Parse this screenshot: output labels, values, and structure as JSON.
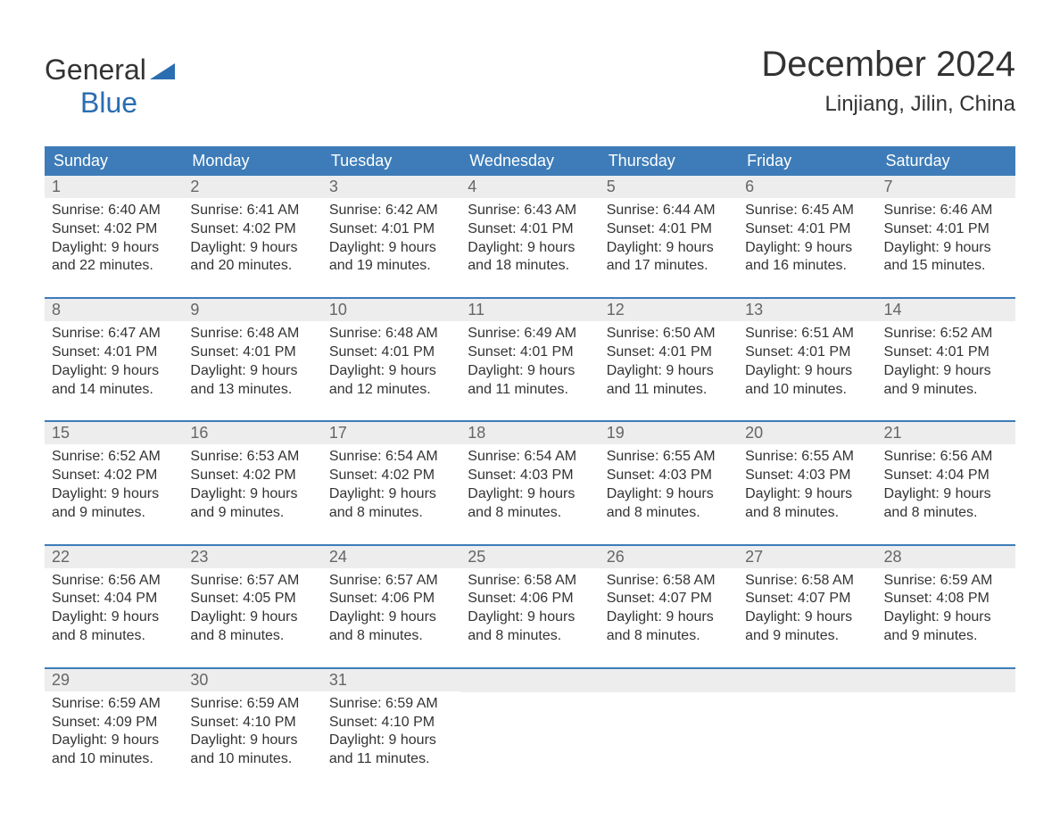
{
  "logo": {
    "word1": "General",
    "word2": "Blue",
    "triangle_color": "#2a6db0",
    "text_color_general": "#333333",
    "text_color_blue": "#2a6db0"
  },
  "title": "December 2024",
  "location": "Linjiang, Jilin, China",
  "colors": {
    "header_bg": "#3d7cb8",
    "header_text": "#ffffff",
    "daynum_bg": "#ededed",
    "daynum_text": "#666666",
    "body_text": "#333333",
    "week_border": "#3d7cb8",
    "page_bg": "#ffffff"
  },
  "fonts": {
    "title_size_pt": 30,
    "location_size_pt": 18,
    "header_size_pt": 14,
    "daynum_size_pt": 14,
    "body_size_pt": 12
  },
  "day_headers": [
    "Sunday",
    "Monday",
    "Tuesday",
    "Wednesday",
    "Thursday",
    "Friday",
    "Saturday"
  ],
  "weeks": [
    [
      {
        "num": "1",
        "sunrise": "Sunrise: 6:40 AM",
        "sunset": "Sunset: 4:02 PM",
        "daylight1": "Daylight: 9 hours",
        "daylight2": "and 22 minutes."
      },
      {
        "num": "2",
        "sunrise": "Sunrise: 6:41 AM",
        "sunset": "Sunset: 4:02 PM",
        "daylight1": "Daylight: 9 hours",
        "daylight2": "and 20 minutes."
      },
      {
        "num": "3",
        "sunrise": "Sunrise: 6:42 AM",
        "sunset": "Sunset: 4:01 PM",
        "daylight1": "Daylight: 9 hours",
        "daylight2": "and 19 minutes."
      },
      {
        "num": "4",
        "sunrise": "Sunrise: 6:43 AM",
        "sunset": "Sunset: 4:01 PM",
        "daylight1": "Daylight: 9 hours",
        "daylight2": "and 18 minutes."
      },
      {
        "num": "5",
        "sunrise": "Sunrise: 6:44 AM",
        "sunset": "Sunset: 4:01 PM",
        "daylight1": "Daylight: 9 hours",
        "daylight2": "and 17 minutes."
      },
      {
        "num": "6",
        "sunrise": "Sunrise: 6:45 AM",
        "sunset": "Sunset: 4:01 PM",
        "daylight1": "Daylight: 9 hours",
        "daylight2": "and 16 minutes."
      },
      {
        "num": "7",
        "sunrise": "Sunrise: 6:46 AM",
        "sunset": "Sunset: 4:01 PM",
        "daylight1": "Daylight: 9 hours",
        "daylight2": "and 15 minutes."
      }
    ],
    [
      {
        "num": "8",
        "sunrise": "Sunrise: 6:47 AM",
        "sunset": "Sunset: 4:01 PM",
        "daylight1": "Daylight: 9 hours",
        "daylight2": "and 14 minutes."
      },
      {
        "num": "9",
        "sunrise": "Sunrise: 6:48 AM",
        "sunset": "Sunset: 4:01 PM",
        "daylight1": "Daylight: 9 hours",
        "daylight2": "and 13 minutes."
      },
      {
        "num": "10",
        "sunrise": "Sunrise: 6:48 AM",
        "sunset": "Sunset: 4:01 PM",
        "daylight1": "Daylight: 9 hours",
        "daylight2": "and 12 minutes."
      },
      {
        "num": "11",
        "sunrise": "Sunrise: 6:49 AM",
        "sunset": "Sunset: 4:01 PM",
        "daylight1": "Daylight: 9 hours",
        "daylight2": "and 11 minutes."
      },
      {
        "num": "12",
        "sunrise": "Sunrise: 6:50 AM",
        "sunset": "Sunset: 4:01 PM",
        "daylight1": "Daylight: 9 hours",
        "daylight2": "and 11 minutes."
      },
      {
        "num": "13",
        "sunrise": "Sunrise: 6:51 AM",
        "sunset": "Sunset: 4:01 PM",
        "daylight1": "Daylight: 9 hours",
        "daylight2": "and 10 minutes."
      },
      {
        "num": "14",
        "sunrise": "Sunrise: 6:52 AM",
        "sunset": "Sunset: 4:01 PM",
        "daylight1": "Daylight: 9 hours",
        "daylight2": "and 9 minutes."
      }
    ],
    [
      {
        "num": "15",
        "sunrise": "Sunrise: 6:52 AM",
        "sunset": "Sunset: 4:02 PM",
        "daylight1": "Daylight: 9 hours",
        "daylight2": "and 9 minutes."
      },
      {
        "num": "16",
        "sunrise": "Sunrise: 6:53 AM",
        "sunset": "Sunset: 4:02 PM",
        "daylight1": "Daylight: 9 hours",
        "daylight2": "and 9 minutes."
      },
      {
        "num": "17",
        "sunrise": "Sunrise: 6:54 AM",
        "sunset": "Sunset: 4:02 PM",
        "daylight1": "Daylight: 9 hours",
        "daylight2": "and 8 minutes."
      },
      {
        "num": "18",
        "sunrise": "Sunrise: 6:54 AM",
        "sunset": "Sunset: 4:03 PM",
        "daylight1": "Daylight: 9 hours",
        "daylight2": "and 8 minutes."
      },
      {
        "num": "19",
        "sunrise": "Sunrise: 6:55 AM",
        "sunset": "Sunset: 4:03 PM",
        "daylight1": "Daylight: 9 hours",
        "daylight2": "and 8 minutes."
      },
      {
        "num": "20",
        "sunrise": "Sunrise: 6:55 AM",
        "sunset": "Sunset: 4:03 PM",
        "daylight1": "Daylight: 9 hours",
        "daylight2": "and 8 minutes."
      },
      {
        "num": "21",
        "sunrise": "Sunrise: 6:56 AM",
        "sunset": "Sunset: 4:04 PM",
        "daylight1": "Daylight: 9 hours",
        "daylight2": "and 8 minutes."
      }
    ],
    [
      {
        "num": "22",
        "sunrise": "Sunrise: 6:56 AM",
        "sunset": "Sunset: 4:04 PM",
        "daylight1": "Daylight: 9 hours",
        "daylight2": "and 8 minutes."
      },
      {
        "num": "23",
        "sunrise": "Sunrise: 6:57 AM",
        "sunset": "Sunset: 4:05 PM",
        "daylight1": "Daylight: 9 hours",
        "daylight2": "and 8 minutes."
      },
      {
        "num": "24",
        "sunrise": "Sunrise: 6:57 AM",
        "sunset": "Sunset: 4:06 PM",
        "daylight1": "Daylight: 9 hours",
        "daylight2": "and 8 minutes."
      },
      {
        "num": "25",
        "sunrise": "Sunrise: 6:58 AM",
        "sunset": "Sunset: 4:06 PM",
        "daylight1": "Daylight: 9 hours",
        "daylight2": "and 8 minutes."
      },
      {
        "num": "26",
        "sunrise": "Sunrise: 6:58 AM",
        "sunset": "Sunset: 4:07 PM",
        "daylight1": "Daylight: 9 hours",
        "daylight2": "and 8 minutes."
      },
      {
        "num": "27",
        "sunrise": "Sunrise: 6:58 AM",
        "sunset": "Sunset: 4:07 PM",
        "daylight1": "Daylight: 9 hours",
        "daylight2": "and 9 minutes."
      },
      {
        "num": "28",
        "sunrise": "Sunrise: 6:59 AM",
        "sunset": "Sunset: 4:08 PM",
        "daylight1": "Daylight: 9 hours",
        "daylight2": "and 9 minutes."
      }
    ],
    [
      {
        "num": "29",
        "sunrise": "Sunrise: 6:59 AM",
        "sunset": "Sunset: 4:09 PM",
        "daylight1": "Daylight: 9 hours",
        "daylight2": "and 10 minutes."
      },
      {
        "num": "30",
        "sunrise": "Sunrise: 6:59 AM",
        "sunset": "Sunset: 4:10 PM",
        "daylight1": "Daylight: 9 hours",
        "daylight2": "and 10 minutes."
      },
      {
        "num": "31",
        "sunrise": "Sunrise: 6:59 AM",
        "sunset": "Sunset: 4:10 PM",
        "daylight1": "Daylight: 9 hours",
        "daylight2": "and 11 minutes."
      },
      {
        "empty": true
      },
      {
        "empty": true
      },
      {
        "empty": true
      },
      {
        "empty": true
      }
    ]
  ]
}
